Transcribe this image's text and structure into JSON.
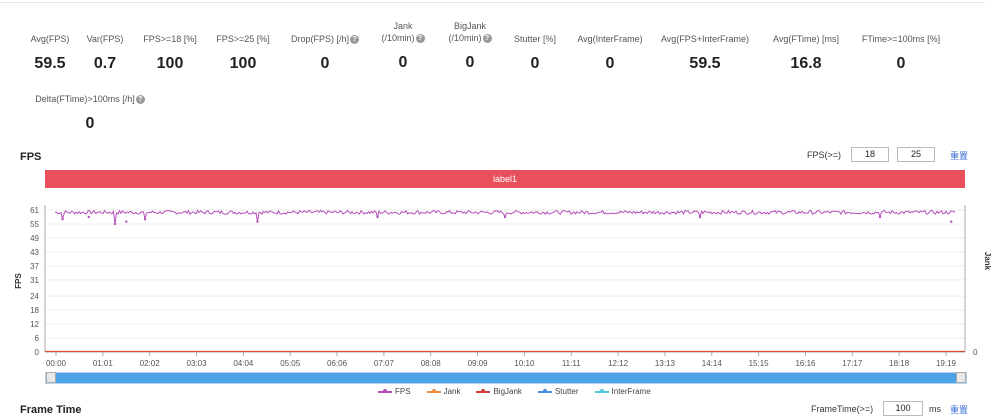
{
  "metrics": [
    {
      "label": "Avg(FPS)",
      "value": "59.5",
      "help": false
    },
    {
      "label": "Var(FPS)",
      "value": "0.7",
      "help": false
    },
    {
      "label": "FPS>=18 [%]",
      "value": "100",
      "help": false
    },
    {
      "label": "FPS>=25 [%]",
      "value": "100",
      "help": false
    },
    {
      "label": "Drop(FPS) [/h]",
      "value": "0",
      "help": true
    },
    {
      "label": "Jank",
      "label2": "(/10min)",
      "value": "0",
      "help": true
    },
    {
      "label": "BigJank",
      "label2": "(/10min)",
      "value": "0",
      "help": true
    },
    {
      "label": "Stutter [%]",
      "value": "0",
      "help": false
    },
    {
      "label": "Avg(InterFrame)",
      "value": "0",
      "help": false
    },
    {
      "label": "Avg(FPS+InterFrame)",
      "value": "59.5",
      "help": false
    },
    {
      "label": "Avg(FTime) [ms]",
      "value": "16.8",
      "help": false
    },
    {
      "label": "FTime>=100ms [%]",
      "value": "0",
      "help": false
    },
    {
      "label": "Delta(FTime)>100ms [/h]",
      "value": "0",
      "help": true
    }
  ],
  "fps_section": {
    "title": "FPS",
    "threshold_label": "FPS(>=)",
    "threshold_1": "18",
    "threshold_2": "25",
    "reset_link": "重置",
    "label_bar": "label1"
  },
  "frame_section": {
    "title": "Frame Time",
    "threshold_label": "FrameTime(>=)",
    "threshold": "100",
    "unit": "ms",
    "reset_link": "重置"
  },
  "chart_data": {
    "type": "line",
    "ylabel": "FPS",
    "y2label": "Jank",
    "y_ticks": [
      "61",
      "55",
      "49",
      "43",
      "37",
      "31",
      "24",
      "18",
      "12",
      "6",
      "0"
    ],
    "y2_ticks": [
      "0"
    ],
    "x_ticks": [
      "00:00",
      "01:01",
      "02:02",
      "03:03",
      "04:04",
      "05:05",
      "06:06",
      "07:07",
      "08:08",
      "09:09",
      "10:10",
      "11:11",
      "12:12",
      "13:13",
      "14:14",
      "15:15",
      "16:16",
      "17:17",
      "18:18",
      "19:19"
    ],
    "ylim": [
      0,
      61
    ],
    "duration_seconds": 1200,
    "fps_baseline": 60,
    "fps_dips": [
      {
        "t": 10,
        "v": 57
      },
      {
        "t": 45,
        "v": 58
      },
      {
        "t": 80,
        "v": 55
      },
      {
        "t": 95,
        "v": 56
      },
      {
        "t": 120,
        "v": 57
      },
      {
        "t": 270,
        "v": 56
      },
      {
        "t": 430,
        "v": 58
      },
      {
        "t": 600,
        "v": 58
      },
      {
        "t": 860,
        "v": 58
      },
      {
        "t": 1100,
        "v": 58
      },
      {
        "t": 1195,
        "v": 56
      }
    ],
    "series": [
      {
        "name": "FPS",
        "color": "#b54fb8"
      },
      {
        "name": "Jank",
        "color": "#f08a3c"
      },
      {
        "name": "BigJank",
        "color": "#d43d3d"
      },
      {
        "name": "Stutter",
        "color": "#4a8fe0"
      },
      {
        "name": "InterFrame",
        "color": "#4ec9dd"
      }
    ],
    "grid": true,
    "legend_position": "bottom"
  },
  "icons": {
    "help": "?"
  }
}
